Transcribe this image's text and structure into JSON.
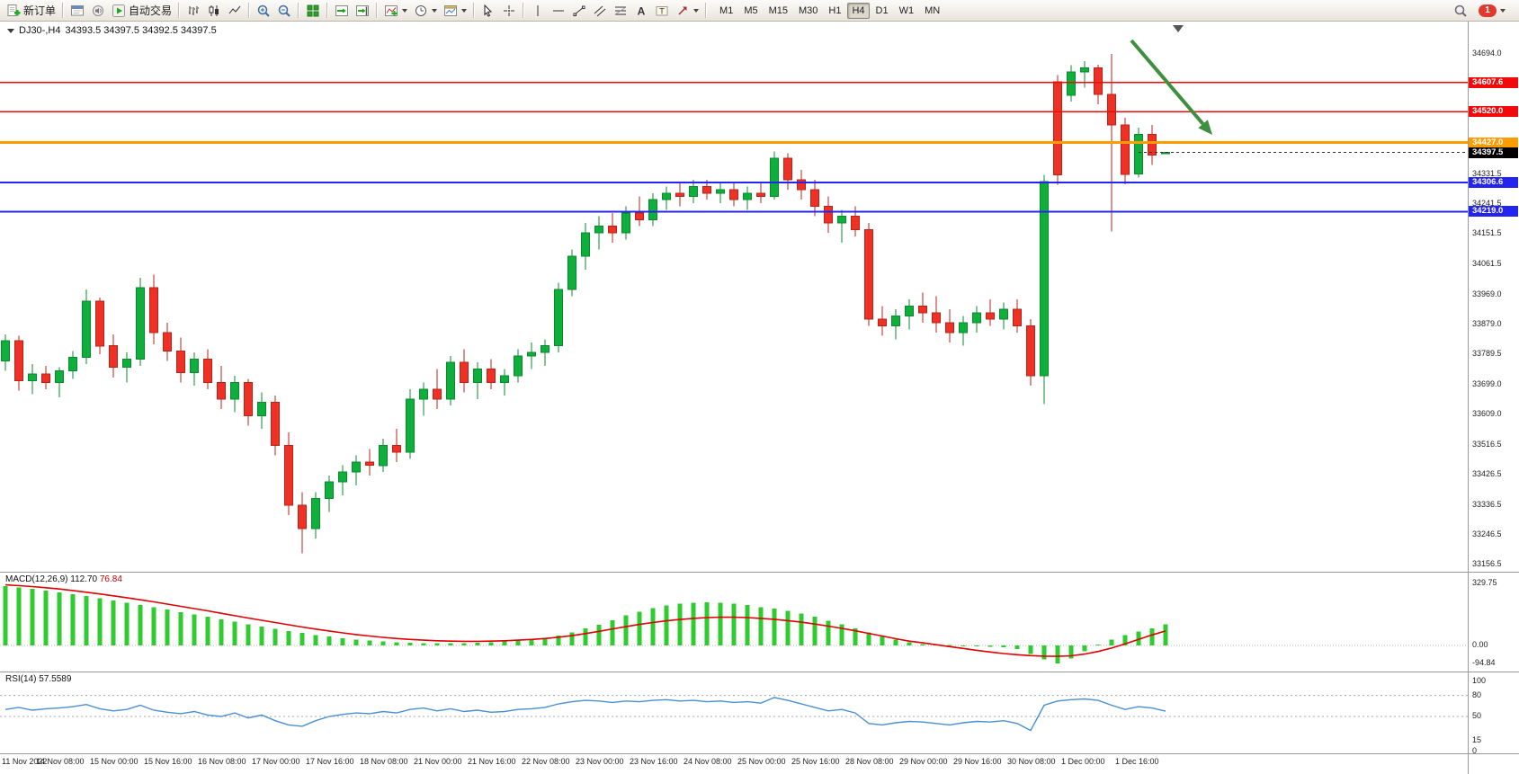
{
  "toolbar": {
    "new_order_label": "新订单",
    "autotrade_label": "自动交易",
    "text_tool_glyph": "A",
    "label_tool_glyph": "T",
    "timeframes": [
      "M1",
      "M5",
      "M15",
      "M30",
      "H1",
      "H4",
      "D1",
      "W1",
      "MN"
    ],
    "active_timeframe": "H4",
    "notification_count": "1",
    "icons": [
      "new-order",
      "editor",
      "audio",
      "autotrade",
      "bar-chart",
      "candlestick-chart",
      "line-chart",
      "zoom-in",
      "zoom-out",
      "tile-windows",
      "auto-scroll",
      "chart-shift",
      "indicators",
      "periods",
      "templates",
      "cursor",
      "crosshair",
      "vertical-line",
      "horizontal-line",
      "trendline",
      "channel",
      "fibonacci",
      "text",
      "text-label",
      "arrows",
      "search",
      "notifications"
    ]
  },
  "chart_header": {
    "symbol_period": "DJ30-,H4",
    "ohlc": "34393.5 34397.5 34392.5 34397.5"
  },
  "indicators": {
    "macd_label": "MACD(12,26,9)",
    "macd_value_main": "112.70",
    "macd_value_signal": "76.84",
    "rsi_label": "RSI(14)",
    "rsi_value": "57.5589"
  },
  "colors": {
    "candle_up": "#0faf3c",
    "candle_up_border": "#0a8a2f",
    "candle_down": "#ee3124",
    "candle_down_border": "#b9241a",
    "macd_hist": "#2fcb2f",
    "macd_signal": "#e00000",
    "rsi_line": "#4a8fd4",
    "hline_red": "#f00a0a",
    "hline_orange": "#ff9c00",
    "hline_blue": "#2424f0",
    "arrow_green": "#3f8f3f"
  },
  "chart_data": {
    "type": "candlestick",
    "symbol": "DJ30-",
    "timeframe": "H4",
    "price_range": [
      33156.5,
      34694.0
    ],
    "price_axis_ticks": [
      34694.0,
      34331.5,
      34241.5,
      34151.5,
      34061.5,
      33969.0,
      33879.0,
      33789.5,
      33699.0,
      33609.0,
      33516.5,
      33426.5,
      33336.5,
      33246.5,
      33156.5
    ],
    "x_labels": [
      "11 Nov 2022",
      "14 Nov 08:00",
      "15 Nov 00:00",
      "15 Nov 16:00",
      "16 Nov 08:00",
      "17 Nov 00:00",
      "17 Nov 16:00",
      "18 Nov 08:00",
      "21 Nov 00:00",
      "21 Nov 16:00",
      "22 Nov 08:00",
      "23 Nov 00:00",
      "23 Nov 16:00",
      "24 Nov 08:00",
      "25 Nov 00:00",
      "25 Nov 16:00",
      "28 Nov 08:00",
      "29 Nov 00:00",
      "29 Nov 16:00",
      "30 Nov 08:00",
      "1 Dec 00:00",
      "1 Dec 16:00"
    ],
    "candles_ohlc": [
      [
        33770,
        33850,
        33740,
        33830
      ],
      [
        33830,
        33845,
        33680,
        33710
      ],
      [
        33710,
        33760,
        33670,
        33730
      ],
      [
        33730,
        33755,
        33685,
        33705
      ],
      [
        33705,
        33750,
        33660,
        33740
      ],
      [
        33740,
        33800,
        33715,
        33780
      ],
      [
        33780,
        33985,
        33760,
        33950
      ],
      [
        33950,
        33960,
        33790,
        33815
      ],
      [
        33815,
        33850,
        33720,
        33750
      ],
      [
        33750,
        33795,
        33705,
        33775
      ],
      [
        33775,
        34020,
        33755,
        33990
      ],
      [
        33990,
        34030,
        33820,
        33855
      ],
      [
        33855,
        33885,
        33770,
        33800
      ],
      [
        33800,
        33840,
        33705,
        33735
      ],
      [
        33735,
        33795,
        33695,
        33775
      ],
      [
        33775,
        33805,
        33685,
        33705
      ],
      [
        33705,
        33755,
        33625,
        33655
      ],
      [
        33655,
        33725,
        33615,
        33705
      ],
      [
        33705,
        33715,
        33575,
        33605
      ],
      [
        33605,
        33675,
        33565,
        33645
      ],
      [
        33645,
        33665,
        33485,
        33515
      ],
      [
        33515,
        33555,
        33305,
        33335
      ],
      [
        33335,
        33375,
        33190,
        33265
      ],
      [
        33265,
        33375,
        33235,
        33355
      ],
      [
        33355,
        33425,
        33315,
        33405
      ],
      [
        33405,
        33455,
        33365,
        33435
      ],
      [
        33435,
        33485,
        33395,
        33465
      ],
      [
        33465,
        33505,
        33425,
        33455
      ],
      [
        33455,
        33535,
        33435,
        33515
      ],
      [
        33515,
        33565,
        33465,
        33495
      ],
      [
        33495,
        33685,
        33475,
        33655
      ],
      [
        33655,
        33705,
        33605,
        33685
      ],
      [
        33685,
        33745,
        33625,
        33655
      ],
      [
        33655,
        33785,
        33635,
        33765
      ],
      [
        33765,
        33805,
        33675,
        33705
      ],
      [
        33705,
        33765,
        33655,
        33745
      ],
      [
        33745,
        33775,
        33685,
        33705
      ],
      [
        33705,
        33745,
        33665,
        33725
      ],
      [
        33725,
        33805,
        33705,
        33785
      ],
      [
        33785,
        33825,
        33745,
        33795
      ],
      [
        33795,
        33835,
        33755,
        33815
      ],
      [
        33815,
        34005,
        33795,
        33985
      ],
      [
        33985,
        34105,
        33965,
        34085
      ],
      [
        34085,
        34185,
        34045,
        34155
      ],
      [
        34155,
        34205,
        34105,
        34175
      ],
      [
        34175,
        34215,
        34125,
        34155
      ],
      [
        34155,
        34235,
        34135,
        34215
      ],
      [
        34215,
        34265,
        34175,
        34195
      ],
      [
        34195,
        34275,
        34175,
        34255
      ],
      [
        34255,
        34295,
        34225,
        34275
      ],
      [
        34275,
        34305,
        34235,
        34265
      ],
      [
        34265,
        34315,
        34245,
        34295
      ],
      [
        34295,
        34315,
        34255,
        34275
      ],
      [
        34275,
        34305,
        34245,
        34285
      ],
      [
        34285,
        34305,
        34235,
        34255
      ],
      [
        34255,
        34295,
        34225,
        34275
      ],
      [
        34275,
        34305,
        34245,
        34265
      ],
      [
        34265,
        34400,
        34255,
        34380
      ],
      [
        34380,
        34395,
        34285,
        34315
      ],
      [
        34315,
        34345,
        34255,
        34285
      ],
      [
        34285,
        34315,
        34205,
        34235
      ],
      [
        34235,
        34265,
        34155,
        34185
      ],
      [
        34185,
        34225,
        34125,
        34205
      ],
      [
        34205,
        34235,
        34145,
        34165
      ],
      [
        34165,
        34185,
        33875,
        33895
      ],
      [
        33895,
        33935,
        33845,
        33875
      ],
      [
        33875,
        33925,
        33835,
        33905
      ],
      [
        33905,
        33955,
        33865,
        33935
      ],
      [
        33935,
        33975,
        33885,
        33915
      ],
      [
        33915,
        33965,
        33855,
        33885
      ],
      [
        33885,
        33925,
        33825,
        33855
      ],
      [
        33855,
        33905,
        33815,
        33885
      ],
      [
        33885,
        33935,
        33855,
        33915
      ],
      [
        33915,
        33955,
        33875,
        33895
      ],
      [
        33895,
        33945,
        33865,
        33925
      ],
      [
        33925,
        33955,
        33855,
        33875
      ],
      [
        33875,
        33895,
        33695,
        33725
      ],
      [
        33725,
        34330,
        33640,
        34310
      ],
      [
        34610,
        34630,
        34300,
        34330
      ],
      [
        34570,
        34660,
        34550,
        34640
      ],
      [
        34640,
        34672,
        34592,
        34652
      ],
      [
        34652,
        34662,
        34542,
        34572
      ],
      [
        34572,
        34694,
        34160,
        34480
      ],
      [
        34480,
        34502,
        34302,
        34332
      ],
      [
        34332,
        34472,
        34322,
        34452
      ],
      [
        34452,
        34480,
        34360,
        34390
      ],
      [
        34393.5,
        34397.5,
        34392.5,
        34397.5
      ]
    ],
    "hlines": [
      {
        "price": 34607.6,
        "label": "34607.6",
        "color": "#f00a0a",
        "width": 1.5
      },
      {
        "price": 34520.0,
        "label": "34520.0",
        "color": "#f00a0a",
        "width": 1.5
      },
      {
        "price": 34427.0,
        "label": "34427.0",
        "color": "#ff9c00",
        "width": 3
      },
      {
        "price": 34306.6,
        "label": "34306.6",
        "color": "#2424f0",
        "width": 2
      },
      {
        "price": 34219.0,
        "label": "34219.0",
        "color": "#2424f0",
        "width": 2
      }
    ],
    "current_price": {
      "value": 34397.5,
      "label": "34397.5"
    },
    "annotation_arrow": {
      "from": [
        1258,
        21
      ],
      "to": [
        1348,
        126
      ],
      "color": "#3f8f3f"
    },
    "macd": {
      "label": "MACD(12,26,9)",
      "value_main": 112.7,
      "value_signal": 76.84,
      "axis_ticks": [
        329.75,
        0.0,
        -94.84
      ],
      "histogram": [
        315,
        308,
        300,
        292,
        283,
        273,
        262,
        251,
        240,
        228,
        216,
        204,
        191,
        178,
        165,
        152,
        139,
        126,
        113,
        101,
        89,
        77,
        66,
        56,
        47,
        39,
        32,
        26,
        21,
        17,
        14,
        12,
        11,
        11,
        12,
        14,
        17,
        21,
        26,
        32,
        40,
        52,
        70,
        90,
        110,
        135,
        160,
        180,
        198,
        212,
        222,
        228,
        230,
        228,
        222,
        214,
        204,
        196,
        184,
        170,
        152,
        132,
        112,
        92,
        70,
        48,
        30,
        16,
        8,
        4,
        2,
        -1,
        -3,
        -6,
        -10,
        -18,
        -45,
        -75,
        -95,
        -70,
        -30,
        5,
        30,
        55,
        75,
        92,
        112.7
      ],
      "signal": [
        322,
        318,
        313,
        307,
        300,
        292,
        283,
        274,
        264,
        254,
        243,
        232,
        220,
        208,
        196,
        184,
        171,
        158,
        146,
        134,
        122,
        110,
        98,
        87,
        77,
        67,
        58,
        50,
        43,
        37,
        32,
        28,
        25,
        23,
        22,
        22,
        23,
        25,
        28,
        32,
        37,
        44,
        52,
        63,
        75,
        88,
        100,
        112,
        122,
        131,
        138,
        144,
        148,
        150,
        150,
        148,
        144,
        139,
        132,
        124,
        114,
        103,
        91,
        78,
        64,
        50,
        36,
        23,
        14,
        4,
        -6,
        -16,
        -26,
        -35,
        -43,
        -49,
        -54,
        -57,
        -58,
        -55,
        -46,
        -32,
        -14,
        8,
        32,
        56,
        76.84
      ]
    },
    "rsi": {
      "label": "RSI(14)",
      "value": 57.5589,
      "axis_ticks": [
        100,
        80,
        50,
        15,
        0
      ],
      "levels": [
        80,
        50
      ],
      "values": [
        60,
        63,
        59,
        61,
        62,
        64,
        67,
        61,
        58,
        60,
        66,
        59,
        56,
        54,
        57,
        52,
        50,
        55,
        48,
        52,
        44,
        38,
        36,
        44,
        50,
        53,
        55,
        54,
        57,
        55,
        60,
        62,
        58,
        61,
        57,
        59,
        56,
        57,
        60,
        61,
        63,
        68,
        71,
        73,
        72,
        70,
        72,
        71,
        73,
        74,
        72,
        73,
        71,
        72,
        70,
        71,
        69,
        77,
        73,
        68,
        63,
        58,
        60,
        55,
        40,
        38,
        41,
        43,
        42,
        40,
        38,
        41,
        43,
        42,
        44,
        40,
        30,
        66,
        72,
        74,
        75,
        73,
        66,
        60,
        64,
        62,
        57.56
      ]
    }
  }
}
